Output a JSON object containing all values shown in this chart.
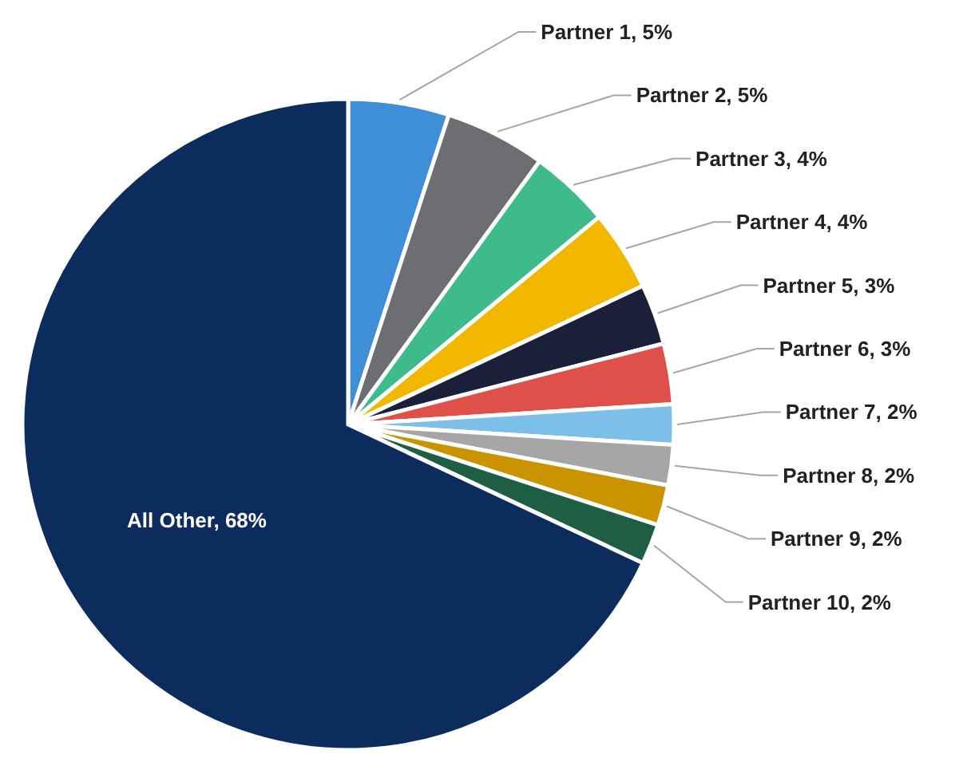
{
  "chart_data": {
    "type": "pie",
    "categories": [
      "Partner 1, 5%",
      "Partner 2, 5%",
      "Partner 3, 4%",
      "Partner 4, 4%",
      "Partner 5, 3%",
      "Partner 6, 3%",
      "Partner 7, 2%",
      "Partner 8, 2%",
      "Partner 9, 2%",
      "Partner 10, 2%",
      "All Other, 68%"
    ],
    "values": [
      5,
      5,
      4,
      4,
      3,
      3,
      2,
      2,
      2,
      2,
      68
    ],
    "colors": [
      "#3e8fd8",
      "#6d6e71",
      "#3dbb8a",
      "#f2b800",
      "#1c1f3a",
      "#e0504a",
      "#7cc0ea",
      "#a6a6a6",
      "#c99400",
      "#1e5e44",
      "#0d2c5e"
    ]
  }
}
